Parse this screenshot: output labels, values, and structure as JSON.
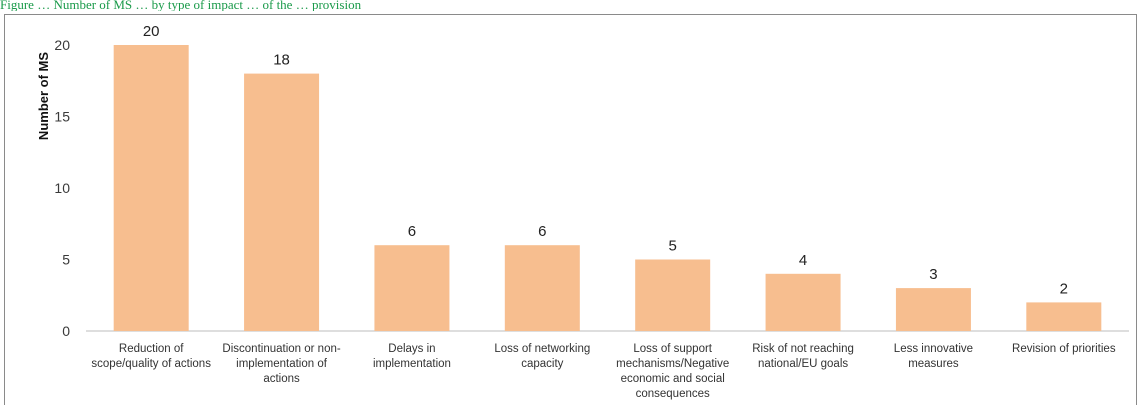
{
  "caption": "Figure … Number of MS … by type of impact … of the … provision",
  "chart_data": {
    "type": "bar",
    "categories": [
      [
        "Reduction of",
        "scope/quality of actions"
      ],
      [
        "Discontinuation or non-",
        "implementation of",
        "actions"
      ],
      [
        "Delays in",
        "implementation"
      ],
      [
        "Loss of networking",
        "capacity"
      ],
      [
        "Loss of support",
        "mechanisms/Negative",
        "economic and social",
        "consequences"
      ],
      [
        "Risk of not reaching",
        "national/EU goals"
      ],
      [
        "Less innovative",
        "measures"
      ],
      [
        "Revision of priorities"
      ]
    ],
    "values": [
      20,
      18,
      6,
      6,
      5,
      4,
      3,
      2
    ],
    "title": "",
    "xlabel": "",
    "ylabel": "Number of MS",
    "ylim": [
      0,
      20
    ],
    "yticks": [
      0,
      5,
      10,
      15,
      20
    ],
    "grid": false,
    "bar_color": "#f7be8f",
    "data_labels": true
  }
}
